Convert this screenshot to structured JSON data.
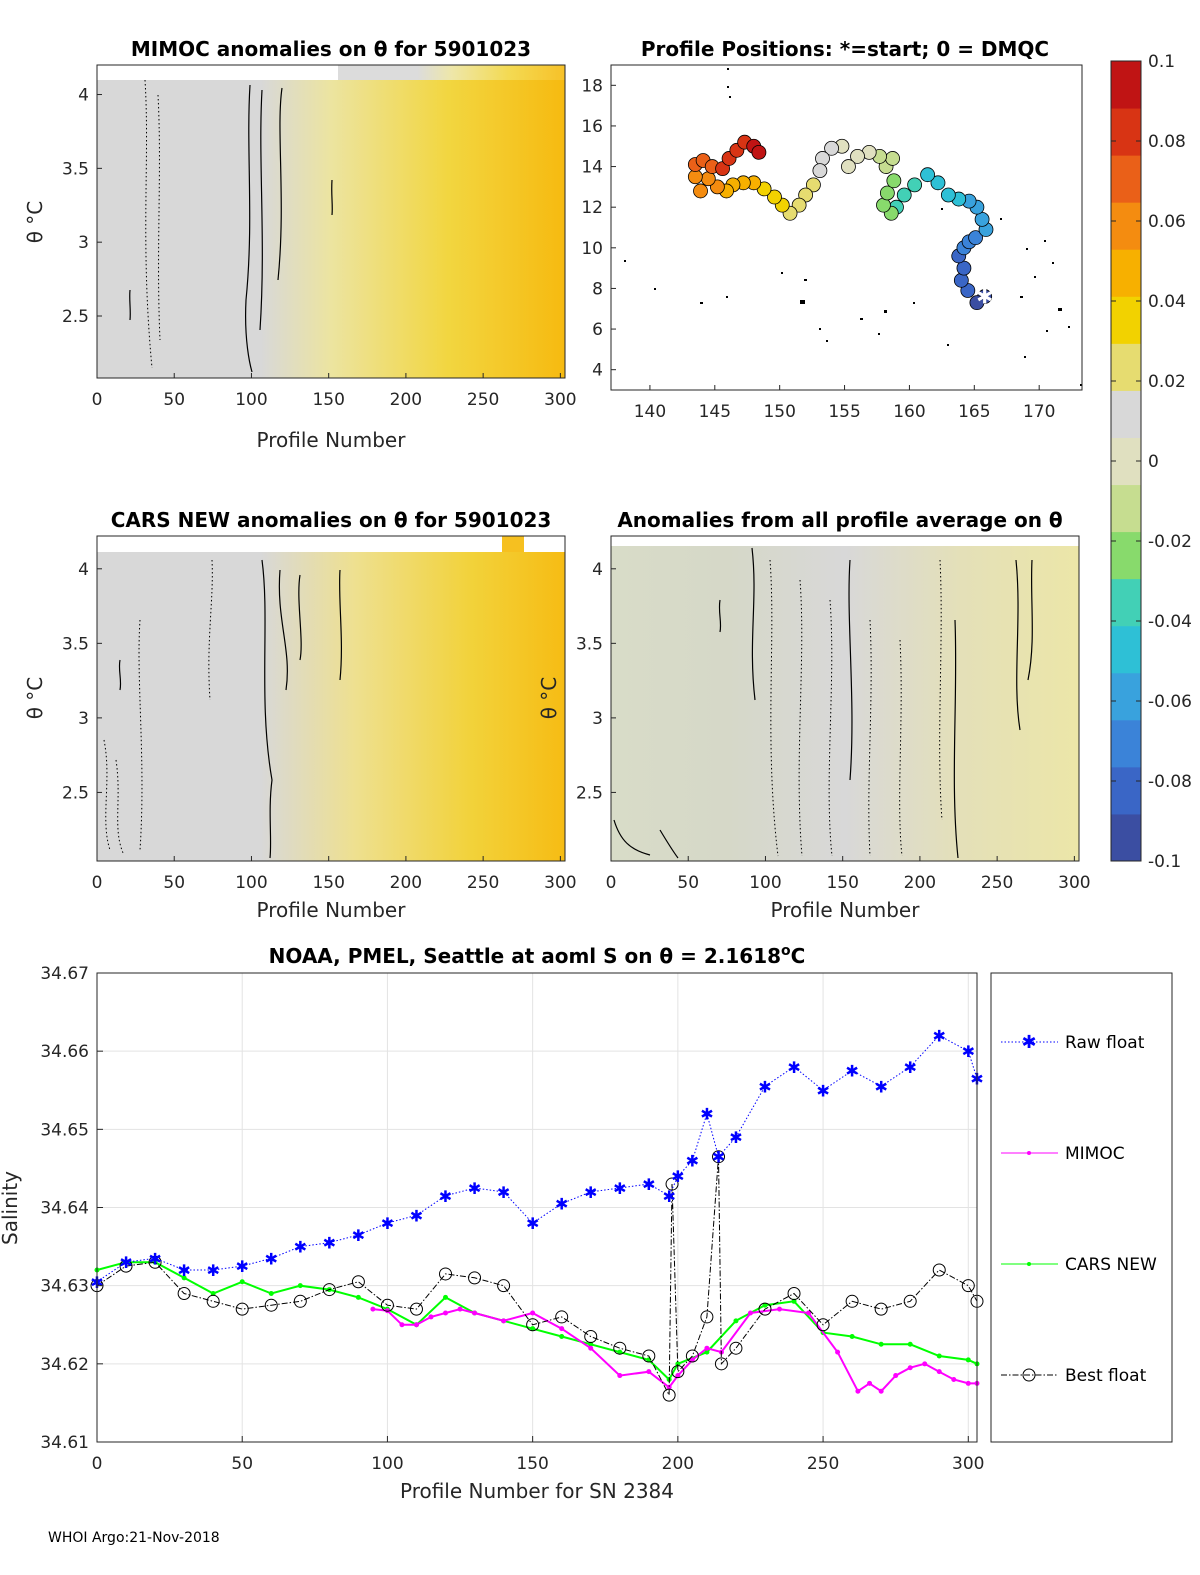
{
  "footer": "WHOI Argo:21-Nov-2018",
  "panels": {
    "mimoc": {
      "title": "MIMOC anomalies on θ  for 5901023",
      "xlabel": "Profile Number",
      "ylabel": "θ °C",
      "xticks": [
        "0",
        "50",
        "100",
        "150",
        "200",
        "250",
        "300"
      ],
      "yticks": [
        "4",
        "3.5",
        "3",
        "2.5"
      ],
      "xlim": [
        0,
        303
      ],
      "ylim": [
        2.08,
        4.2
      ]
    },
    "positions": {
      "title": "Profile Positions: *=start; 0 = DMQC",
      "xticks": [
        "140",
        "145",
        "150",
        "155",
        "160",
        "165",
        "170"
      ],
      "yticks": [
        "18",
        "16",
        "14",
        "12",
        "10",
        "8",
        "6",
        "4"
      ],
      "xlim": [
        137,
        173.3
      ],
      "ylim": [
        3,
        19
      ],
      "track": [
        [
          165.8,
          7.6
        ],
        [
          165.2,
          7.3
        ],
        [
          164.5,
          7.9
        ],
        [
          164.0,
          8.4
        ],
        [
          164.2,
          9.0
        ],
        [
          163.8,
          9.6
        ],
        [
          164.2,
          10.0
        ],
        [
          164.6,
          10.3
        ],
        [
          165.1,
          10.5
        ],
        [
          165.9,
          10.9
        ],
        [
          165.6,
          11.4
        ],
        [
          165.2,
          12.0
        ],
        [
          164.6,
          12.3
        ],
        [
          163.8,
          12.4
        ],
        [
          163.0,
          12.6
        ],
        [
          162.2,
          13.2
        ],
        [
          161.4,
          13.6
        ],
        [
          160.4,
          13.1
        ],
        [
          159.6,
          12.6
        ],
        [
          159.0,
          12.0
        ],
        [
          158.6,
          11.7
        ],
        [
          158.0,
          12.1
        ],
        [
          158.3,
          12.7
        ],
        [
          158.8,
          13.3
        ],
        [
          158.2,
          14.0
        ],
        [
          158.7,
          14.4
        ],
        [
          157.7,
          14.5
        ],
        [
          156.9,
          14.7
        ],
        [
          156.0,
          14.5
        ],
        [
          155.3,
          14.0
        ],
        [
          154.8,
          15.0
        ],
        [
          154.0,
          14.9
        ],
        [
          153.3,
          14.4
        ],
        [
          153.1,
          13.8
        ],
        [
          152.6,
          13.1
        ],
        [
          152.0,
          12.6
        ],
        [
          151.5,
          12.1
        ],
        [
          150.8,
          11.7
        ],
        [
          150.2,
          12.1
        ],
        [
          149.6,
          12.5
        ],
        [
          148.8,
          12.9
        ],
        [
          148.0,
          13.2
        ],
        [
          147.2,
          13.2
        ],
        [
          146.4,
          13.1
        ],
        [
          145.9,
          12.8
        ],
        [
          145.2,
          13.0
        ],
        [
          144.5,
          13.4
        ],
        [
          143.9,
          12.8
        ],
        [
          143.5,
          13.5
        ],
        [
          143.5,
          14.1
        ],
        [
          144.1,
          14.3
        ],
        [
          144.8,
          14.0
        ],
        [
          145.6,
          13.9
        ],
        [
          146.1,
          14.4
        ],
        [
          146.7,
          14.8
        ],
        [
          147.3,
          15.2
        ],
        [
          148.0,
          15.0
        ],
        [
          148.4,
          14.7
        ]
      ],
      "start": [
        165.8,
        7.6
      ]
    },
    "cars": {
      "title": "CARS NEW anomalies on θ for 5901023",
      "xlabel": "Profile Number",
      "ylabel": "θ °C",
      "xticks": [
        "0",
        "50",
        "100",
        "150",
        "200",
        "250",
        "300"
      ],
      "yticks": [
        "4",
        "3.5",
        "3",
        "2.5"
      ],
      "xlim": [
        0,
        303
      ],
      "ylim": [
        2.04,
        4.22
      ]
    },
    "allavg": {
      "title": "Anomalies from all profile average on θ",
      "xlabel": "Profile Number",
      "ylabel": "θ °C",
      "xticks": [
        "0",
        "50",
        "100",
        "150",
        "200",
        "250",
        "300"
      ],
      "yticks": [
        "4",
        "3.5",
        "3",
        "2.5"
      ],
      "xlim": [
        0,
        303
      ],
      "ylim": [
        2.04,
        4.22
      ]
    }
  },
  "colorbar": {
    "ticks": [
      "0.1",
      "0.08",
      "0.06",
      "0.04",
      "0.02",
      "0",
      "-0.02",
      "-0.04",
      "-0.06",
      "-0.08",
      "-0.1"
    ],
    "range": [
      -0.1,
      0.1
    ],
    "colors": [
      "#3b4ea2",
      "#3a66c6",
      "#3b83d8",
      "#39a2dd",
      "#2ec0d6",
      "#42d0b6",
      "#88da6c",
      "#c6dd90",
      "#e0e0c0",
      "#d8d8d8",
      "#e6dc70",
      "#f2d200",
      "#f7b000",
      "#f48c10",
      "#ea6018",
      "#d83414",
      "#c01414"
    ]
  },
  "chart_data": {
    "type": "line",
    "title": "NOAA, PMEL, Seattle at aoml S on θ = 2.1618°C",
    "title_main": "NOAA, PMEL, Seattle at aoml S on θ = 2.1618",
    "title_sup": "o",
    "title_unit": "C",
    "xlabel": "Profile Number for SN 2384",
    "ylabel": "Salinity",
    "xlim": [
      0,
      303
    ],
    "ylim": [
      34.61,
      34.67
    ],
    "xticks": [
      "0",
      "50",
      "100",
      "150",
      "200",
      "250",
      "300"
    ],
    "yticks": [
      "34.67",
      "34.66",
      "34.65",
      "34.64",
      "34.63",
      "34.62",
      "34.61"
    ],
    "legend": [
      "Raw float",
      "MIMOC",
      "CARS NEW",
      "Best float"
    ],
    "series": {
      "raw": {
        "name": "Raw float",
        "color": "#0000ff",
        "x": [
          0,
          10,
          20,
          30,
          40,
          50,
          60,
          70,
          80,
          90,
          100,
          110,
          120,
          130,
          140,
          150,
          160,
          170,
          180,
          190,
          197,
          200,
          205,
          210,
          214,
          220,
          230,
          240,
          250,
          260,
          270,
          280,
          290,
          300,
          303
        ],
        "y": [
          34.6305,
          34.633,
          34.6335,
          34.632,
          34.632,
          34.6325,
          34.6335,
          34.635,
          34.6355,
          34.6365,
          34.638,
          34.639,
          34.6415,
          34.6425,
          34.642,
          34.638,
          34.6405,
          34.642,
          34.6425,
          34.643,
          34.6415,
          34.644,
          34.646,
          34.652,
          34.6465,
          34.649,
          34.6555,
          34.658,
          34.655,
          34.6575,
          34.6555,
          34.658,
          34.662,
          34.66,
          34.6565
        ]
      },
      "mimoc": {
        "name": "MIMOC",
        "color": "#ff00ff",
        "x": [
          95,
          100,
          105,
          110,
          115,
          120,
          125,
          130,
          140,
          150,
          160,
          170,
          180,
          190,
          197,
          200,
          205,
          210,
          215,
          225,
          235,
          245,
          255,
          262,
          266,
          270,
          275,
          280,
          285,
          290,
          295,
          300,
          303
        ],
        "y": [
          34.627,
          34.6268,
          34.625,
          34.625,
          34.626,
          34.6265,
          34.627,
          34.6265,
          34.6255,
          34.6265,
          34.6245,
          34.622,
          34.6185,
          34.619,
          34.617,
          34.6185,
          34.6205,
          34.622,
          34.6215,
          34.6265,
          34.627,
          34.6265,
          34.6215,
          34.6165,
          34.6175,
          34.6165,
          34.6185,
          34.6195,
          34.62,
          34.619,
          34.618,
          34.6175,
          34.6175
        ]
      },
      "cars": {
        "name": "CARS NEW",
        "color": "#00ff00",
        "x": [
          0,
          10,
          20,
          30,
          40,
          50,
          60,
          70,
          80,
          90,
          100,
          110,
          120,
          130,
          140,
          150,
          160,
          170,
          180,
          190,
          197,
          200,
          210,
          220,
          230,
          240,
          250,
          260,
          270,
          280,
          290,
          300,
          303
        ],
        "y": [
          34.632,
          34.633,
          34.633,
          34.631,
          34.629,
          34.6305,
          34.629,
          34.63,
          34.6295,
          34.6285,
          34.627,
          34.625,
          34.6285,
          34.6265,
          34.6255,
          34.6245,
          34.6235,
          34.6225,
          34.6215,
          34.6205,
          34.618,
          34.62,
          34.6215,
          34.6255,
          34.6275,
          34.628,
          34.624,
          34.6235,
          34.6225,
          34.6225,
          34.621,
          34.6205,
          34.62
        ]
      },
      "best": {
        "name": "Best float",
        "color": "#000000",
        "x": [
          0,
          10,
          20,
          30,
          40,
          50,
          60,
          70,
          80,
          90,
          100,
          110,
          120,
          130,
          140,
          150,
          160,
          170,
          180,
          190,
          197,
          198,
          200,
          205,
          210,
          214,
          215,
          220,
          230,
          240,
          250,
          260,
          270,
          280,
          290,
          300,
          303
        ],
        "y": [
          34.63,
          34.6325,
          34.633,
          34.629,
          34.628,
          34.627,
          34.6275,
          34.628,
          34.6295,
          34.6305,
          34.6275,
          34.627,
          34.6315,
          34.631,
          34.63,
          34.625,
          34.626,
          34.6235,
          34.622,
          34.621,
          34.616,
          34.643,
          34.619,
          34.621,
          34.626,
          34.6465,
          34.62,
          34.622,
          34.627,
          34.629,
          34.625,
          34.628,
          34.627,
          34.628,
          34.632,
          34.63,
          34.628
        ]
      }
    }
  }
}
